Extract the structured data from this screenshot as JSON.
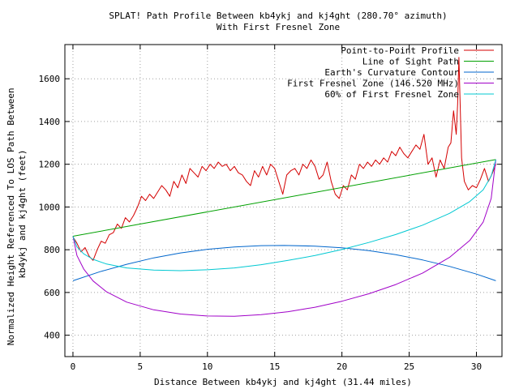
{
  "chart_data": {
    "type": "line",
    "title": "SPLAT! Path Profile Between kb4ykj and kj4ght (280.70° azimuth)",
    "subtitle": "With First Fresnel Zone",
    "xlabel": "Distance Between kb4ykj and kj4ght (31.44 miles)",
    "ylabel": [
      "Normalized Height Referenced To LOS Path Between",
      "kb4ykj and kj4ght (feet)"
    ],
    "xlim": [
      -0.6,
      31.9
    ],
    "ylim": [
      300,
      1760
    ],
    "xticks": [
      0,
      5,
      10,
      15,
      20,
      25,
      30
    ],
    "yticks": [
      400,
      600,
      800,
      1000,
      1200,
      1400,
      1600
    ],
    "grid": true,
    "legend_position": "top-right",
    "series": [
      {
        "name": "Point-to-Point Profile",
        "color": "#d40000",
        "x": [
          0,
          0.3,
          0.6,
          0.9,
          1.2,
          1.5,
          1.8,
          2.1,
          2.4,
          2.7,
          3.0,
          3.3,
          3.6,
          3.9,
          4.2,
          4.5,
          4.8,
          5.1,
          5.4,
          5.7,
          6.0,
          6.3,
          6.6,
          6.9,
          7.2,
          7.5,
          7.8,
          8.1,
          8.4,
          8.7,
          9.0,
          9.3,
          9.6,
          9.9,
          10.2,
          10.5,
          10.8,
          11.1,
          11.4,
          11.7,
          12.0,
          12.3,
          12.6,
          12.9,
          13.2,
          13.5,
          13.8,
          14.1,
          14.4,
          14.7,
          15.0,
          15.3,
          15.6,
          15.9,
          16.2,
          16.5,
          16.8,
          17.1,
          17.4,
          17.7,
          18.0,
          18.3,
          18.6,
          18.9,
          19.2,
          19.5,
          19.8,
          20.1,
          20.4,
          20.7,
          21.0,
          21.3,
          21.6,
          21.9,
          22.2,
          22.5,
          22.8,
          23.1,
          23.4,
          23.7,
          24.0,
          24.3,
          24.6,
          24.9,
          25.2,
          25.5,
          25.8,
          26.1,
          26.4,
          26.7,
          27.0,
          27.3,
          27.6,
          27.9,
          28.1,
          28.3,
          28.5,
          28.6,
          28.7,
          28.9,
          29.1,
          29.4,
          29.7,
          30.0,
          30.3,
          30.6,
          30.9,
          31.2,
          31.44
        ],
        "y": [
          860,
          830,
          790,
          810,
          770,
          750,
          800,
          840,
          830,
          870,
          880,
          920,
          900,
          950,
          930,
          960,
          1000,
          1050,
          1030,
          1060,
          1040,
          1070,
          1100,
          1080,
          1050,
          1120,
          1090,
          1150,
          1110,
          1180,
          1160,
          1140,
          1190,
          1170,
          1200,
          1180,
          1210,
          1190,
          1200,
          1170,
          1190,
          1160,
          1150,
          1120,
          1100,
          1170,
          1140,
          1190,
          1150,
          1200,
          1180,
          1120,
          1060,
          1150,
          1170,
          1180,
          1150,
          1200,
          1180,
          1220,
          1190,
          1130,
          1150,
          1210,
          1120,
          1060,
          1040,
          1100,
          1080,
          1150,
          1130,
          1200,
          1180,
          1210,
          1190,
          1220,
          1200,
          1230,
          1210,
          1260,
          1240,
          1280,
          1250,
          1230,
          1260,
          1290,
          1270,
          1340,
          1200,
          1230,
          1140,
          1220,
          1180,
          1280,
          1300,
          1450,
          1340,
          1480,
          1700,
          1230,
          1120,
          1080,
          1100,
          1090,
          1130,
          1180,
          1120,
          1160,
          1200
        ]
      },
      {
        "name": "Line of Sight Path",
        "color": "#00a000",
        "x": [
          0,
          31.44
        ],
        "y": [
          863,
          1222
        ]
      },
      {
        "name": "Earth's Curvature Contour",
        "color": "#0066cc",
        "x": [
          0,
          2,
          4,
          6,
          8,
          10,
          12,
          14,
          15.72,
          18,
          20,
          22,
          24,
          26,
          28,
          30,
          31.44
        ],
        "y": [
          655,
          697,
          732,
          762,
          785,
          802,
          813,
          819,
          820,
          817,
          809,
          796,
          777,
          752,
          722,
          686,
          655
        ]
      },
      {
        "name": "First Fresnel Zone (146.520 MHz)",
        "color": "#a000c8",
        "x": [
          0,
          0.3,
          0.8,
          1.5,
          2.5,
          4,
          6,
          8,
          10,
          12,
          14,
          16,
          18,
          20,
          22,
          24,
          26,
          28,
          29.5,
          30.5,
          31.1,
          31.44
        ],
        "y": [
          863,
          773,
          710,
          654,
          603,
          555,
          519,
          499,
          490,
          489,
          496,
          510,
          531,
          559,
          594,
          637,
          691,
          764,
          843,
          929,
          1040,
          1222
        ]
      },
      {
        "name": "60% of First Fresnel Zone",
        "color": "#00c8d2",
        "x": [
          0,
          0.3,
          0.8,
          1.5,
          2.5,
          4,
          6,
          8,
          10,
          12,
          14,
          16,
          18,
          20,
          22,
          24,
          26,
          28,
          29.5,
          30.5,
          31.1,
          31.44
        ],
        "y": [
          863,
          813,
          781,
          755,
          733,
          715,
          705,
          702,
          706,
          715,
          730,
          750,
          773,
          801,
          834,
          871,
          915,
          970,
          1025,
          1080,
          1145,
          1222
        ]
      }
    ]
  }
}
